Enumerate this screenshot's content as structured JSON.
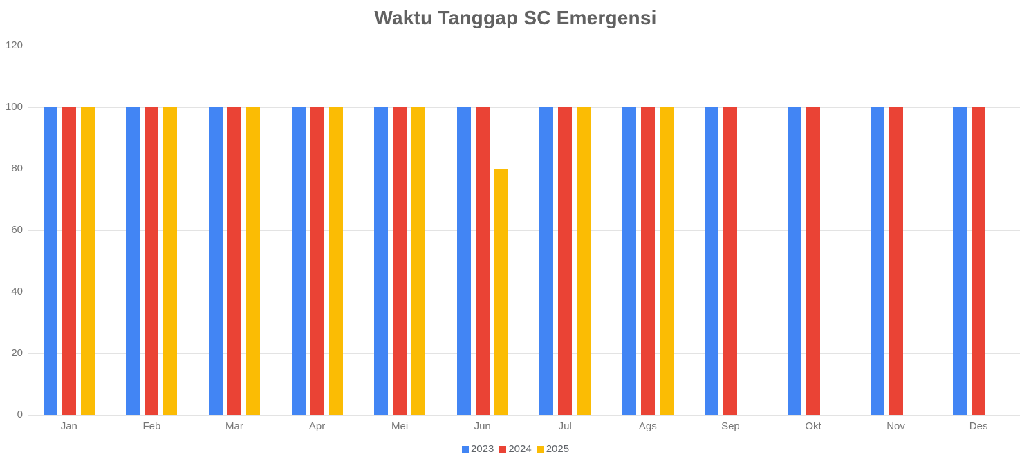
{
  "chart_data": {
    "type": "bar",
    "title": "Waktu Tanggap SC Emergensi",
    "categories": [
      "Jan",
      "Feb",
      "Mar",
      "Apr",
      "Mei",
      "Jun",
      "Jul",
      "Ags",
      "Sep",
      "Okt",
      "Nov",
      "Des"
    ],
    "series": [
      {
        "name": "2023",
        "color": "#4285F4",
        "values": [
          100,
          100,
          100,
          100,
          100,
          100,
          100,
          100,
          100,
          100,
          100,
          100
        ]
      },
      {
        "name": "2024",
        "color": "#EA4335",
        "values": [
          100,
          100,
          100,
          100,
          100,
          100,
          100,
          100,
          100,
          100,
          100,
          100
        ]
      },
      {
        "name": "2025",
        "color": "#FBBC04",
        "values": [
          100,
          100,
          100,
          100,
          100,
          80,
          100,
          100,
          null,
          null,
          null,
          null
        ]
      }
    ],
    "xlabel": "",
    "ylabel": "",
    "ylim": [
      0,
      120
    ],
    "yticks": [
      0,
      20,
      40,
      60,
      80,
      100,
      120
    ],
    "grid": true,
    "legend_position": "bottom"
  },
  "style": {
    "background": "#FFFFFF",
    "title_color": "#616161",
    "axis_label_color": "#757575",
    "legend_text_color": "#5F6368",
    "grid_color": "#E3E3E3"
  }
}
